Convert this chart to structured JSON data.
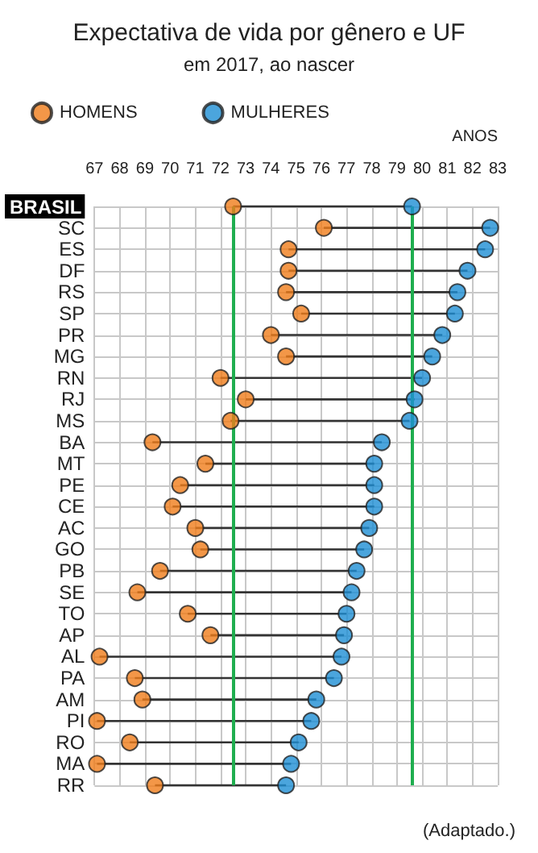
{
  "chart_data": {
    "type": "scatter",
    "orientation": "horizontal",
    "title": "Expectativa de vida por gênero e UF",
    "subtitle": "em 2017, ao nascer",
    "xlabel": "ANOS",
    "categories": [
      "BRASIL",
      "SC",
      "ES",
      "DF",
      "RS",
      "SP",
      "PR",
      "MG",
      "RN",
      "RJ",
      "MS",
      "BA",
      "MT",
      "PE",
      "CE",
      "AC",
      "GO",
      "PB",
      "SE",
      "TO",
      "AP",
      "AL",
      "PA",
      "AM",
      "PI",
      "RO",
      "MA",
      "RR"
    ],
    "series": [
      {
        "name": "HOMENS",
        "color": "#f07d1a",
        "values": [
          72.5,
          76.1,
          74.7,
          74.7,
          74.6,
          75.2,
          74.0,
          74.6,
          72.0,
          73.0,
          72.4,
          69.3,
          71.4,
          70.4,
          70.1,
          71.0,
          71.2,
          69.6,
          68.7,
          70.7,
          71.6,
          67.2,
          68.6,
          68.9,
          67.1,
          68.4,
          67.1,
          69.4
        ]
      },
      {
        "name": "MULHERES",
        "color": "#1e8fd5",
        "values": [
          79.6,
          82.7,
          82.5,
          81.8,
          81.4,
          81.3,
          80.8,
          80.4,
          80.0,
          79.7,
          79.5,
          78.4,
          78.1,
          78.1,
          78.1,
          77.9,
          77.7,
          77.4,
          77.2,
          77.0,
          76.9,
          76.8,
          76.5,
          75.8,
          75.6,
          75.1,
          74.8,
          74.6
        ]
      }
    ],
    "xlim": [
      67,
      83
    ],
    "xticks": [
      67,
      68,
      69,
      70,
      71,
      72,
      73,
      74,
      75,
      76,
      77,
      78,
      79,
      80,
      81,
      82,
      83
    ],
    "ref_lines": [
      {
        "axis": "x",
        "value": 72.5,
        "color": "#1fae4f"
      },
      {
        "axis": "x",
        "value": 79.6,
        "color": "#1fae4f"
      }
    ],
    "grid": true,
    "legend": "top left",
    "marker": "circle",
    "annotations": [
      "(Adaptado.)"
    ]
  }
}
